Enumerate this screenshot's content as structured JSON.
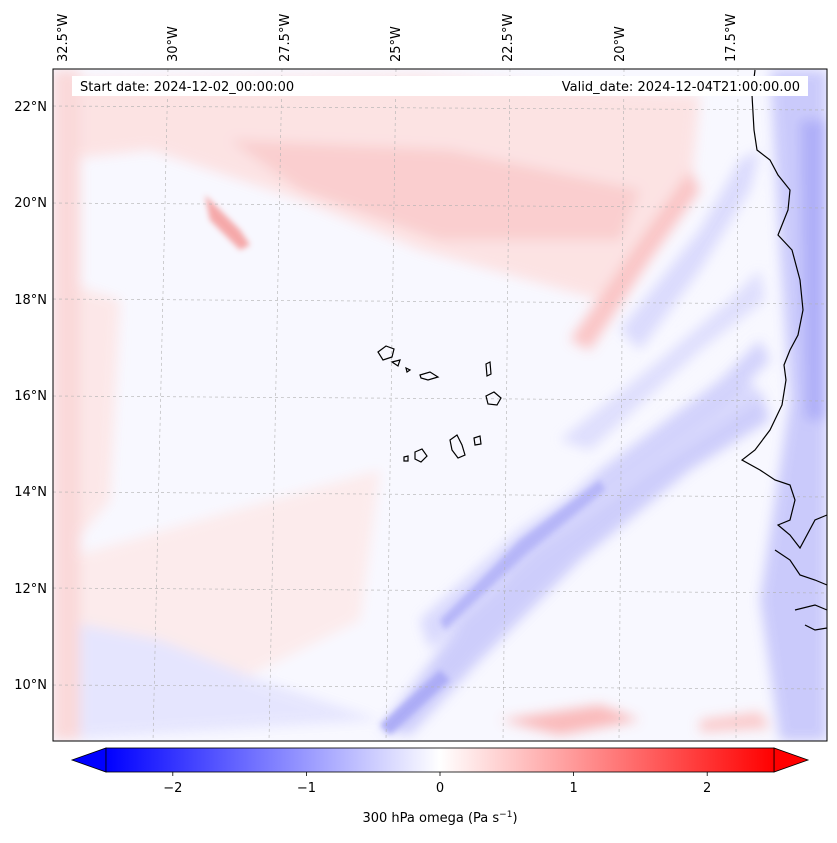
{
  "header": {
    "start_date": "Start date: 2024-12-02_00:00:00",
    "valid_date": "Valid_date: 2024-12-04T21:00:00.00"
  },
  "axes": {
    "lon_labels": [
      "32.5°W",
      "30°W",
      "27.5°W",
      "25°W",
      "22.5°W",
      "20°W",
      "17.5°W"
    ],
    "lat_labels": [
      "22°N",
      "20°N",
      "18°N",
      "16°N",
      "14°N",
      "12°N",
      "10°N"
    ]
  },
  "colorbar": {
    "ticks": [
      "−2",
      "−1",
      "0",
      "1",
      "2"
    ],
    "tick_values": [
      -2,
      -1,
      0,
      1,
      2
    ],
    "range": [
      -2.5,
      2.5
    ],
    "label": "300 hPa omega (Pa s",
    "label_sup": "−1",
    "label_close": ")"
  },
  "colors": {
    "negative": "#0000ff",
    "zero": "#ffffff",
    "positive": "#ff0000",
    "coastline": "#000000",
    "grid": "#b0b0b0"
  }
}
